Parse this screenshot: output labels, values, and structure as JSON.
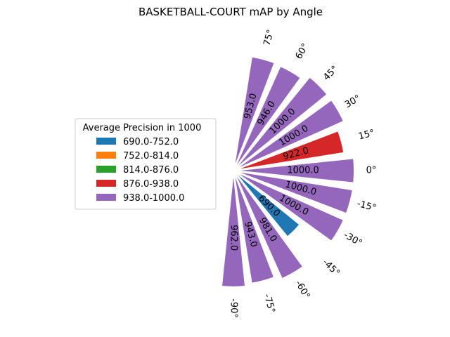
{
  "chart_data": {
    "type": "bar",
    "title": "BASKETBALL-COURT mAP by Angle",
    "polar": true,
    "angles": [
      -90,
      -75,
      -60,
      -45,
      -30,
      -15,
      0,
      15,
      30,
      45,
      60,
      75
    ],
    "tick_labels": [
      "-90°",
      "-75°",
      "-60°",
      "-45°",
      "-30°",
      "-15°",
      "0°",
      "15°",
      "30°",
      "45°",
      "60°",
      "75°"
    ],
    "values": [
      962.0,
      943.0,
      981.0,
      690.0,
      1000.0,
      1000.0,
      1000.0,
      922.0,
      1000.0,
      1000.0,
      946.0,
      953.0
    ],
    "value_labels": [
      "962.0",
      "943.0",
      "981.0",
      "690.0",
      "1000.0",
      "1000.0",
      "1000.0",
      "922.0",
      "1000.0",
      "1000.0",
      "946.0",
      "953.0"
    ],
    "rlim": [
      0,
      1000
    ],
    "grid": false,
    "legend": {
      "title": "Average Precision in 1000",
      "placement": "left",
      "entries": [
        {
          "label": "690.0-752.0",
          "color": "#1f77b4",
          "min": 690.0,
          "max": 752.0
        },
        {
          "label": "752.0-814.0",
          "color": "#ff7f0e",
          "min": 752.0,
          "max": 814.0
        },
        {
          "label": "814.0-876.0",
          "color": "#2ca02c",
          "min": 814.0,
          "max": 876.0
        },
        {
          "label": "876.0-938.0",
          "color": "#d62728",
          "min": 876.0,
          "max": 938.0
        },
        {
          "label": "938.0-1000.0",
          "color": "#9467bd",
          "min": 938.0,
          "max": 1000.0
        }
      ]
    }
  }
}
